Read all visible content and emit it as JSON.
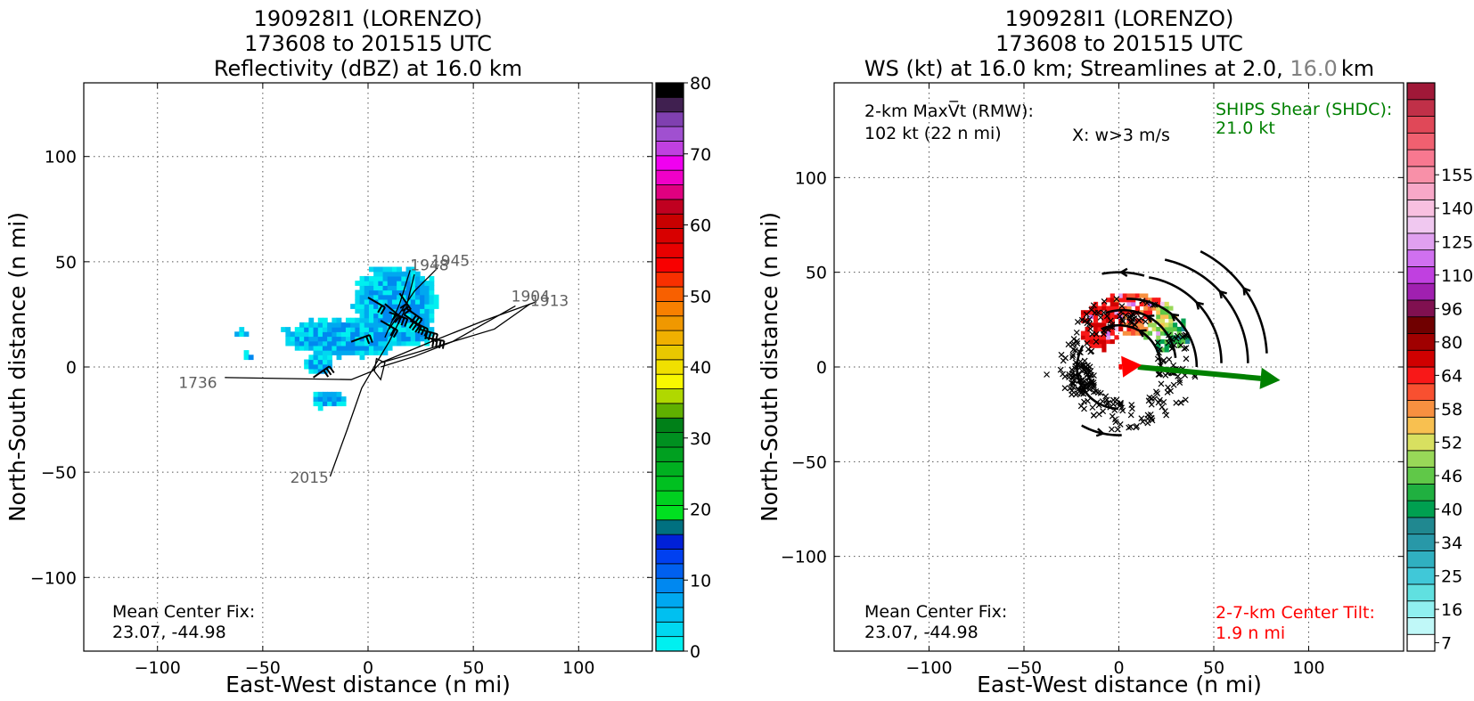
{
  "chart_data": [
    {
      "type": "heatmap",
      "title_lines": [
        "190928I1 (LORENZO)",
        "173608 to 201515 UTC",
        "Reflectivity (dBZ) at 16.0 km"
      ],
      "xlabel": "East-West distance (n mi)",
      "ylabel": "North-South distance (n mi)",
      "xlim": [
        -135,
        135
      ],
      "ylim": [
        -135,
        135
      ],
      "xticks": [
        -100,
        -50,
        0,
        50,
        100
      ],
      "yticks": [
        -100,
        -50,
        0,
        50,
        100
      ],
      "grid": true,
      "annotation_lines": [
        "Mean Center Fix:",
        "23.07, -44.98"
      ],
      "colorbar": {
        "vmin": 0,
        "vmax": 80,
        "ticks": [
          0,
          10,
          20,
          30,
          40,
          50,
          60,
          70,
          80
        ],
        "colors": [
          "#00f0f0",
          "#00d8f0",
          "#00c0f0",
          "#00a8f0",
          "#0088f0",
          "#0060f0",
          "#0040f0",
          "#0020d8",
          "#007080",
          "#00e020",
          "#00d020",
          "#00c020",
          "#00b020",
          "#00a020",
          "#009020",
          "#008018",
          "#60b000",
          "#b0d800",
          "#f8f800",
          "#f0e000",
          "#e8c800",
          "#f0b000",
          "#f09800",
          "#f88000",
          "#f86000",
          "#f83000",
          "#f80000",
          "#e80000",
          "#d80000",
          "#c80000",
          "#c00020",
          "#e00080",
          "#f000c8",
          "#f000f0",
          "#c040e0",
          "#a050d0",
          "#8040b0",
          "#402050",
          "#000000"
        ]
      },
      "tracks": [
        {
          "label": "1736",
          "points": [
            [
              -68,
              -5
            ],
            [
              -8,
              -6
            ],
            [
              2,
              -2
            ],
            [
              6,
              2
            ],
            [
              20,
              6
            ],
            [
              40,
              12
            ],
            [
              60,
              18
            ],
            [
              77,
              30
            ]
          ]
        },
        {
          "label": "2015",
          "points": [
            [
              -18,
              -52
            ],
            [
              -10,
              -30
            ],
            [
              -3,
              -10
            ],
            [
              4,
              2
            ],
            [
              10,
              12
            ],
            [
              18,
              28
            ],
            [
              22,
              44
            ]
          ]
        },
        {
          "label": "1904",
          "points": [
            [
              6,
              0
            ],
            [
              22,
              5
            ],
            [
              40,
              12
            ],
            [
              70,
              29
            ]
          ]
        },
        {
          "label": "1913",
          "points": [
            [
              6,
              2
            ],
            [
              30,
              12
            ],
            [
              55,
              22
            ],
            [
              80,
              31
            ]
          ]
        },
        {
          "label": "1945",
          "points": [
            [
              10,
              18
            ],
            [
              22,
              36
            ],
            [
              33,
              47
            ]
          ]
        },
        {
          "label": "1948",
          "points": [
            [
              8,
              14
            ],
            [
              15,
              30
            ],
            [
              20,
              46
            ]
          ]
        }
      ]
    },
    {
      "type": "heatmap",
      "title_lines": [
        "190928I1 (LORENZO)",
        "173608 to 201515 UTC"
      ],
      "title_line3_parts": [
        "WS (kt) at 16.0 km; Streamlines at 2.0, ",
        "16.0",
        "km"
      ],
      "xlabel": "East-West distance (n mi)",
      "ylabel": "North-South distance (n mi)",
      "xlim": [
        -150,
        150
      ],
      "ylim": [
        -150,
        150
      ],
      "xticks": [
        -100,
        -50,
        0,
        50,
        100
      ],
      "yticks": [
        -100,
        -50,
        0,
        50,
        100
      ],
      "grid": true,
      "maxvt_label": "2-km MaxV̅t (RMW):",
      "maxvt_value": "102 kt (22 n mi)",
      "w_label": "X: w>3 m/s",
      "shear_label": "SHIPS Shear (SHDC):",
      "shear_value": "21.0 kt",
      "shear_vector": {
        "from": [
          10,
          0
        ],
        "to": [
          85,
          -7
        ],
        "color": "#008000"
      },
      "tilt_vector": {
        "from": [
          0,
          0
        ],
        "to": [
          12,
          1
        ],
        "color": "#ff0000"
      },
      "annotation_lines": [
        "Mean Center Fix:",
        "23.07, -44.98"
      ],
      "tilt_lines": [
        "2-7-km Center Tilt:",
        "1.9 n mi"
      ],
      "colorbar": {
        "vmin": 7,
        "vmax": 160,
        "ticks": [
          7,
          16,
          25,
          34,
          40,
          46,
          52,
          58,
          64,
          80,
          96,
          110,
          125,
          140,
          155
        ],
        "colors": [
          "#ffffff",
          "#c0f8f8",
          "#90f0f0",
          "#60e0e0",
          "#40c8d8",
          "#30b0c0",
          "#2898a8",
          "#208890",
          "#00a050",
          "#20b040",
          "#60c848",
          "#98d858",
          "#d8e060",
          "#f8c050",
          "#f89040",
          "#f85030",
          "#f81818",
          "#d00000",
          "#a00000",
          "#700000",
          "#801050",
          "#a020b0",
          "#c040e0",
          "#d070f0",
          "#e0a0f0",
          "#f0c8f0",
          "#f8c0e0",
          "#f8a8c8",
          "#f890a8",
          "#f87890",
          "#f06070",
          "#e04858",
          "#c03048",
          "#a01838"
        ]
      },
      "colorbar_ticks_pos": [
        0,
        2,
        4,
        6,
        8,
        10,
        12,
        14,
        16,
        18,
        20,
        22,
        24,
        26,
        28
      ]
    }
  ]
}
